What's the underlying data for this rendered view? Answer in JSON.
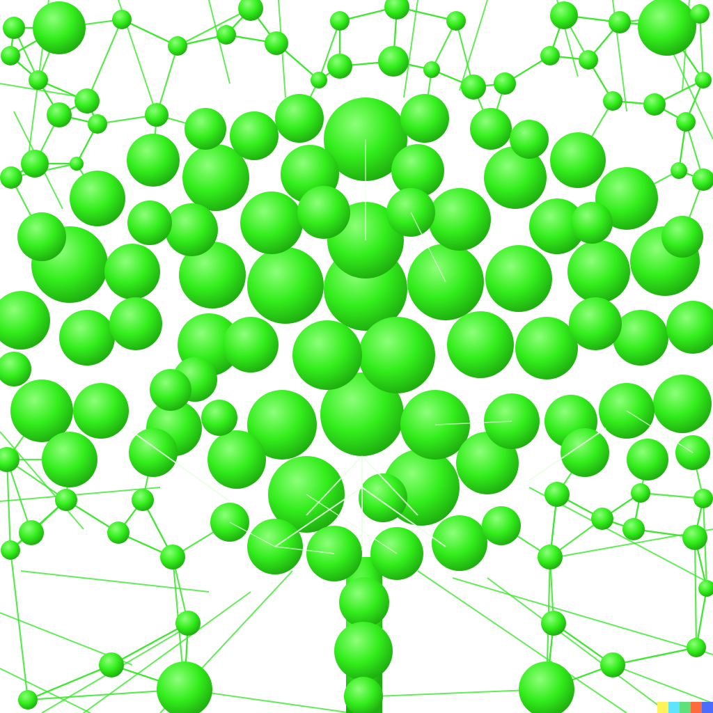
{
  "image": {
    "subject": "",
    "colors": {
      "background": "#ffffff",
      "sphere_light": "#8dff7a",
      "sphere_mid": "#33ee1c",
      "sphere_dark": "#1fae10",
      "line": "#39e82a",
      "highlight": "#e9ffe4"
    }
  },
  "watermark": {
    "colors": [
      "#fff35a",
      "#5fe3ff",
      "#5ee07a",
      "#ff6a3d",
      "#4a6cff"
    ]
  }
}
